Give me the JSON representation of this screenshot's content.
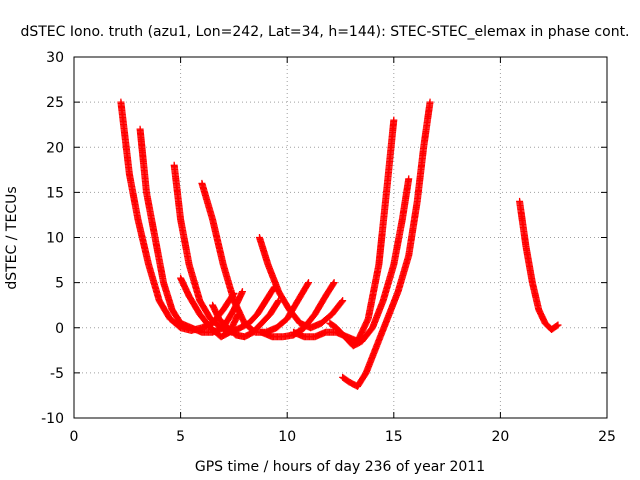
{
  "chart_data": {
    "type": "scatter",
    "title": "dSTEC Iono. truth (azu1, Lon=242, Lat=34, h=144): STEC-STEC_elemax in phase cont.",
    "xlabel": "GPS time / hours of day 236 of year 2011",
    "ylabel": "dSTEC  / TECUs",
    "xlim": [
      0,
      25
    ],
    "ylim": [
      -10,
      30
    ],
    "x_ticks": [
      0,
      5,
      10,
      15,
      20,
      25
    ],
    "y_ticks": [
      -10,
      -5,
      0,
      5,
      10,
      15,
      20,
      25,
      30
    ],
    "x_tick_labels": [
      "0",
      "5",
      "10",
      "15",
      "20",
      "25"
    ],
    "y_tick_labels": [
      "-10",
      "-5",
      "0",
      "5",
      "10",
      "15",
      "20",
      "25",
      "30"
    ],
    "grid": true,
    "marker": "plus",
    "color": "#ff0000",
    "series": [
      {
        "x": [
          2.2,
          2.6,
          3.0,
          3.5,
          4.0,
          4.5,
          5.0,
          5.5,
          6.0,
          6.5,
          7.0,
          7.5
        ],
        "y": [
          25,
          17,
          12,
          7,
          3,
          1,
          0,
          -0.3,
          0,
          0.5,
          2,
          3.8
        ]
      },
      {
        "x": [
          3.1,
          3.4,
          3.8,
          4.2,
          4.6,
          5.0,
          5.5,
          6.0,
          6.5,
          7.0,
          7.5,
          7.9
        ],
        "y": [
          22,
          15,
          10,
          5,
          2,
          0.5,
          0,
          -0.5,
          -0.5,
          0,
          2,
          4
        ]
      },
      {
        "x": [
          4.7,
          5.0,
          5.4,
          5.9,
          6.4,
          6.9,
          7.4,
          7.8,
          8.2,
          8.6,
          9.0,
          9.4
        ],
        "y": [
          18,
          12,
          7,
          3,
          1,
          0,
          -0.5,
          0,
          0.5,
          1.5,
          3,
          4.5
        ]
      },
      {
        "x": [
          5.0,
          5.4,
          5.9,
          6.4,
          6.9,
          7.3,
          7.7
        ],
        "y": [
          5.5,
          3.5,
          1.5,
          0,
          -1,
          -0.5,
          1.5
        ]
      },
      {
        "x": [
          6.0,
          6.5,
          7.0,
          7.5,
          8.0,
          8.5,
          9.0,
          9.5,
          10.0,
          10.5,
          11.0
        ],
        "y": [
          16,
          12,
          7,
          3,
          0.5,
          -0.5,
          -0.5,
          0,
          1,
          3,
          5
        ]
      },
      {
        "x": [
          6.5,
          6.8,
          7.2,
          7.6,
          8.0,
          8.4,
          8.8,
          9.2,
          9.6
        ],
        "y": [
          2.5,
          1,
          0,
          -0.8,
          -1,
          -0.5,
          0.5,
          1.5,
          3
        ]
      },
      {
        "x": [
          8.7,
          9.1,
          9.6,
          10.1,
          10.6,
          11.1,
          11.6,
          12.1,
          12.6
        ],
        "y": [
          10,
          7,
          4,
          2,
          0.5,
          0,
          0.5,
          1.5,
          3
        ]
      },
      {
        "x": [
          8.8,
          9.3,
          9.8,
          10.3,
          10.8,
          11.3,
          11.8,
          12.2
        ],
        "y": [
          -0.5,
          -1,
          -1,
          -0.8,
          0,
          1.5,
          3.5,
          5
        ]
      },
      {
        "x": [
          10.3,
          10.8,
          11.3,
          11.8,
          12.3,
          12.8,
          13.3,
          13.8,
          14.3,
          14.7,
          15.0
        ],
        "y": [
          -0.5,
          -1,
          -1,
          -0.5,
          -0.5,
          -1,
          -1.5,
          1,
          7,
          16,
          23
        ]
      },
      {
        "x": [
          12.0,
          12.3,
          12.7,
          13.1,
          13.5,
          14.0,
          14.5,
          15.0,
          15.4,
          15.7
        ],
        "y": [
          0.5,
          0,
          -1,
          -2,
          -1.5,
          0,
          3,
          7,
          12,
          16.5
        ]
      },
      {
        "x": [
          12.6,
          12.9,
          13.3,
          13.7,
          14.2,
          14.7,
          15.2,
          15.7,
          16.1,
          16.4,
          16.7
        ],
        "y": [
          -5.5,
          -6,
          -6.5,
          -5,
          -2,
          1,
          4,
          8,
          14,
          20,
          25
        ]
      },
      {
        "x": [
          20.9,
          21.2,
          21.5,
          21.8,
          22.1,
          22.4,
          22.7
        ],
        "y": [
          14,
          9,
          5,
          2,
          0.5,
          -0.2,
          0.3
        ]
      }
    ]
  }
}
